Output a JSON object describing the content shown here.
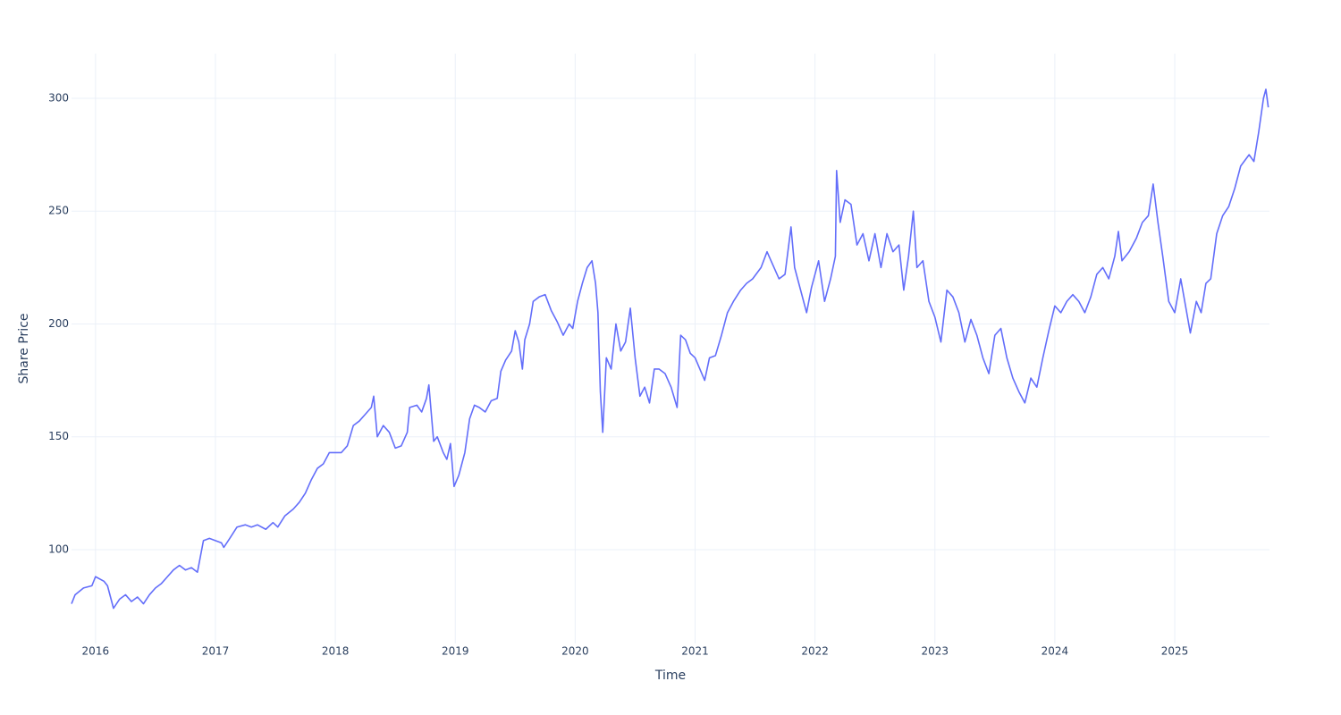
{
  "chart_data": {
    "type": "line",
    "x_label": "Time",
    "y_label": "Share Price",
    "color": "#636efa",
    "grid": true,
    "xlim": [
      2015.8,
      2025.79
    ],
    "xticks": [
      2016,
      2017,
      2018,
      2019,
      2020,
      2021,
      2022,
      2023,
      2024,
      2025
    ],
    "ylim": [
      58.4,
      319.8
    ],
    "yticks": [
      100,
      150,
      200,
      250,
      300
    ],
    "x": [
      2015.8,
      2015.83,
      2015.9,
      2015.97,
      2016.0,
      2016.07,
      2016.1,
      2016.15,
      2016.2,
      2016.25,
      2016.3,
      2016.35,
      2016.4,
      2016.45,
      2016.5,
      2016.55,
      2016.6,
      2016.65,
      2016.7,
      2016.75,
      2016.8,
      2016.85,
      2016.9,
      2016.95,
      2017.0,
      2017.05,
      2017.07,
      2017.12,
      2017.18,
      2017.25,
      2017.3,
      2017.35,
      2017.42,
      2017.48,
      2017.52,
      2017.58,
      2017.65,
      2017.7,
      2017.75,
      2017.8,
      2017.85,
      2017.9,
      2017.95,
      2018.0,
      2018.05,
      2018.1,
      2018.15,
      2018.2,
      2018.25,
      2018.3,
      2018.32,
      2018.35,
      2018.4,
      2018.45,
      2018.5,
      2018.55,
      2018.6,
      2018.62,
      2018.68,
      2018.72,
      2018.76,
      2018.78,
      2018.82,
      2018.85,
      2018.9,
      2018.93,
      2018.96,
      2018.99,
      2019.03,
      2019.08,
      2019.12,
      2019.16,
      2019.2,
      2019.25,
      2019.3,
      2019.35,
      2019.38,
      2019.42,
      2019.47,
      2019.5,
      2019.53,
      2019.56,
      2019.58,
      2019.62,
      2019.65,
      2019.7,
      2019.75,
      2019.8,
      2019.85,
      2019.9,
      2019.95,
      2019.98,
      2020.02,
      2020.06,
      2020.1,
      2020.14,
      2020.17,
      2020.19,
      2020.21,
      2020.23,
      2020.26,
      2020.3,
      2020.34,
      2020.38,
      2020.42,
      2020.46,
      2020.5,
      2020.54,
      2020.58,
      2020.62,
      2020.66,
      2020.7,
      2020.75,
      2020.8,
      2020.85,
      2020.88,
      2020.92,
      2020.96,
      2021.0,
      2021.04,
      2021.08,
      2021.12,
      2021.17,
      2021.22,
      2021.27,
      2021.32,
      2021.38,
      2021.43,
      2021.48,
      2021.55,
      2021.6,
      2021.65,
      2021.7,
      2021.75,
      2021.8,
      2021.83,
      2021.88,
      2021.93,
      2021.97,
      2022.03,
      2022.08,
      2022.13,
      2022.17,
      2022.18,
      2022.21,
      2022.25,
      2022.3,
      2022.35,
      2022.4,
      2022.45,
      2022.5,
      2022.55,
      2022.6,
      2022.65,
      2022.7,
      2022.74,
      2022.78,
      2022.82,
      2022.85,
      2022.9,
      2022.95,
      2023.0,
      2023.05,
      2023.1,
      2023.15,
      2023.2,
      2023.25,
      2023.3,
      2023.35,
      2023.4,
      2023.45,
      2023.5,
      2023.55,
      2023.6,
      2023.65,
      2023.7,
      2023.75,
      2023.8,
      2023.85,
      2023.9,
      2023.95,
      2024.0,
      2024.05,
      2024.1,
      2024.15,
      2024.2,
      2024.25,
      2024.3,
      2024.35,
      2024.4,
      2024.45,
      2024.5,
      2024.53,
      2024.56,
      2024.62,
      2024.68,
      2024.73,
      2024.78,
      2024.82,
      2024.86,
      2024.9,
      2024.95,
      2025.0,
      2025.05,
      2025.1,
      2025.13,
      2025.18,
      2025.22,
      2025.26,
      2025.3,
      2025.35,
      2025.4,
      2025.45,
      2025.5,
      2025.55,
      2025.62,
      2025.66,
      2025.7,
      2025.74,
      2025.76,
      2025.78
    ],
    "values": [
      76,
      80,
      83,
      84,
      88,
      86,
      84,
      74,
      78,
      80,
      77,
      79,
      76,
      80,
      83,
      85,
      88,
      91,
      93,
      91,
      92,
      90,
      104,
      105,
      104,
      103,
      101,
      105,
      110,
      111,
      110,
      111,
      109,
      112,
      110,
      115,
      118,
      121,
      125,
      131,
      136,
      138,
      143,
      143,
      143,
      146,
      155,
      157,
      160,
      163,
      168,
      150,
      155,
      152,
      145,
      146,
      152,
      163,
      164,
      161,
      167,
      173,
      148,
      150,
      143,
      140,
      147,
      128,
      133,
      143,
      158,
      164,
      163,
      161,
      166,
      167,
      179,
      184,
      188,
      197,
      192,
      180,
      193,
      200,
      210,
      212,
      213,
      206,
      201,
      195,
      200,
      198,
      210,
      218,
      225,
      228,
      218,
      205,
      170,
      152,
      185,
      180,
      200,
      188,
      192,
      207,
      185,
      168,
      172,
      165,
      180,
      180,
      178,
      172,
      163,
      195,
      193,
      187,
      185,
      180,
      175,
      185,
      186,
      195,
      205,
      210,
      215,
      218,
      220,
      225,
      232,
      226,
      220,
      222,
      243,
      225,
      215,
      205,
      216,
      228,
      210,
      220,
      230,
      268,
      245,
      255,
      253,
      235,
      240,
      228,
      240,
      225,
      240,
      232,
      235,
      215,
      230,
      250,
      225,
      228,
      210,
      203,
      192,
      215,
      212,
      205,
      192,
      202,
      195,
      185,
      178,
      195,
      198,
      185,
      176,
      170,
      165,
      176,
      172,
      185,
      197,
      208,
      205,
      210,
      213,
      210,
      205,
      212,
      222,
      225,
      220,
      230,
      241,
      228,
      232,
      238,
      245,
      248,
      262,
      245,
      230,
      210,
      205,
      220,
      205,
      196,
      210,
      205,
      218,
      220,
      240,
      248,
      252,
      260,
      270,
      275,
      272,
      285,
      300,
      304,
      296
    ]
  }
}
